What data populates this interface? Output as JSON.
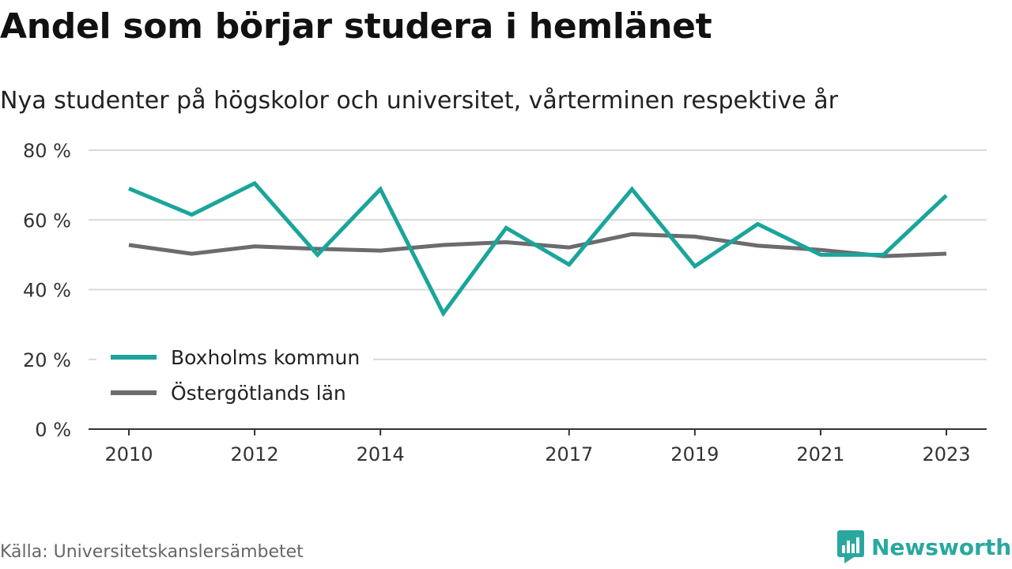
{
  "title": "Andel som börjar studera i hemlänet",
  "subtitle": "Nya studenter på högskolor och universitet, vårterminen respektive år",
  "source": "Källa: Universitetskanslersämbetet",
  "brand": {
    "name": "Newsworthy",
    "icon": "newsworthy-logo-icon",
    "color": "#2aa7a0"
  },
  "chart_data": {
    "type": "line",
    "x": [
      2010,
      2011,
      2012,
      2013,
      2014,
      2015,
      2016,
      2017,
      2018,
      2019,
      2020,
      2021,
      2022,
      2023
    ],
    "x_tick_labels": [
      "2010",
      "2012",
      "2014",
      "2017",
      "2019",
      "2021",
      "2023"
    ],
    "y_tick_labels": [
      "0 %",
      "20 %",
      "40 %",
      "60 %",
      "80 %"
    ],
    "y_ticks": [
      0,
      20,
      40,
      60,
      80
    ],
    "ylim": [
      0,
      80
    ],
    "grid": true,
    "legend_position": "bottom-left",
    "series": [
      {
        "name": "Boxholms kommun",
        "color": "#1aa59a",
        "values": [
          69,
          61.5,
          70.5,
          50,
          68.8,
          33.2,
          57.7,
          47.2,
          68.8,
          46.7,
          58.8,
          50,
          50,
          67
        ]
      },
      {
        "name": "Östergötlands län",
        "color": "#6b6b70",
        "values": [
          52.8,
          50.3,
          52.4,
          51.7,
          51.2,
          52.8,
          53.6,
          52.1,
          55.9,
          55.2,
          52.6,
          51.4,
          49.6,
          50.3
        ]
      }
    ]
  }
}
